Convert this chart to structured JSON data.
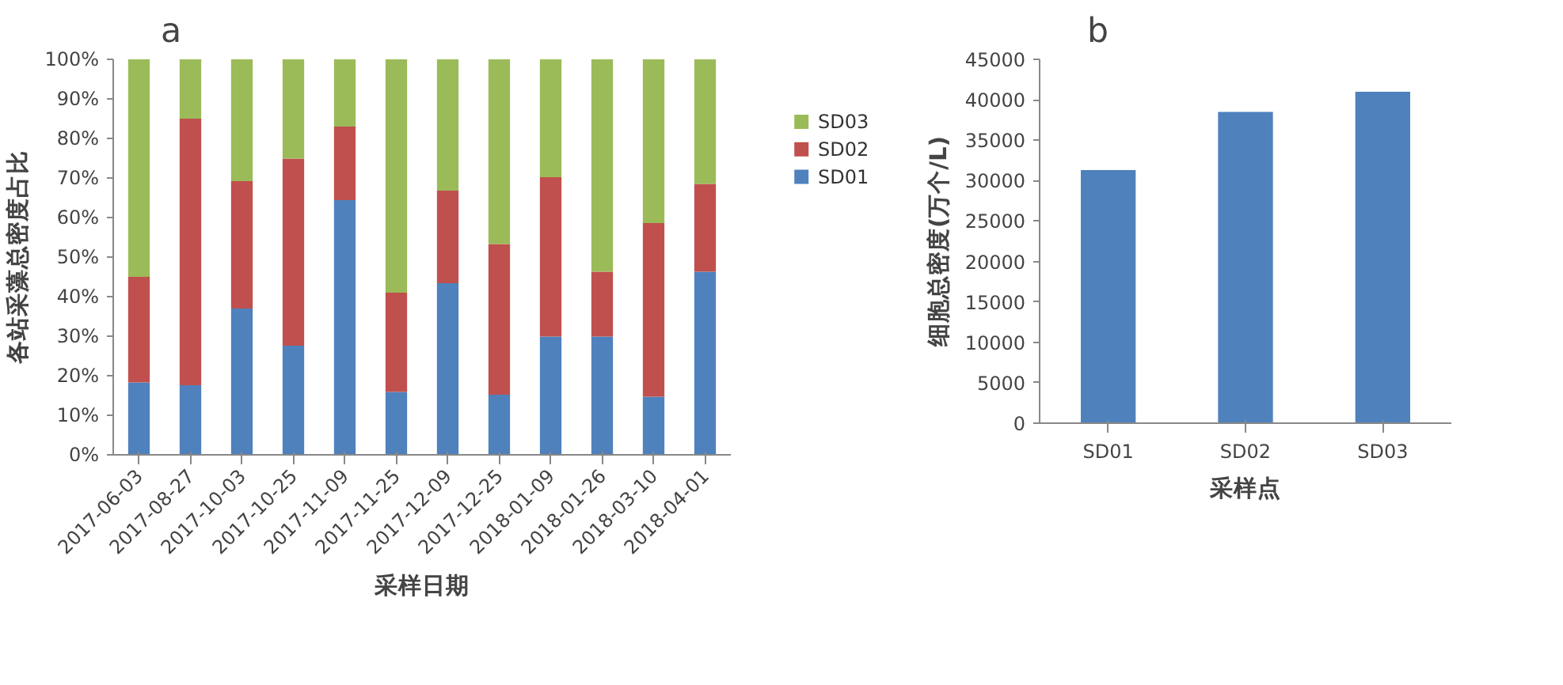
{
  "chart_data": [
    {
      "type": "bar",
      "title": "a",
      "xlabel": "采样日期",
      "ylabel": "各站采藻总密度占比",
      "stacked": true,
      "categories": [
        "2017-06-03",
        "2017-08-27",
        "2017-10-03",
        "2017-10-25",
        "2017-11-09",
        "2017-11-25",
        "2017-12-09",
        "2017-12-25",
        "2018-01-09",
        "2018-01-26",
        "2018-03-10",
        "2018-04-01"
      ],
      "series": [
        {
          "name": "SD01",
          "color": "#4f81bd",
          "values": [
            18.3,
            17.6,
            37,
            27.6,
            64.4,
            15.9,
            43.4,
            15.2,
            29.9,
            29.9,
            14.7,
            46.3
          ]
        },
        {
          "name": "SD02",
          "color": "#c0504d",
          "values": [
            26.7,
            67.4,
            32.2,
            47.3,
            18.6,
            25.1,
            23.4,
            38.1,
            40.3,
            16.4,
            43.9,
            22.2
          ]
        },
        {
          "name": "SD03",
          "color": "#9bbb59",
          "values": [
            55,
            15,
            30.8,
            25.1,
            17,
            59,
            33.2,
            46.7,
            29.8,
            53.7,
            41.4,
            31.5
          ]
        }
      ],
      "ylim": [
        0,
        100
      ],
      "yticks": [
        {
          "value": 0,
          "label": "0%"
        },
        {
          "value": 10,
          "label": "10%"
        },
        {
          "value": 20,
          "label": "20%"
        },
        {
          "value": 30,
          "label": "30%"
        },
        {
          "value": 40,
          "label": "40%"
        },
        {
          "value": 50,
          "label": "50%"
        },
        {
          "value": 60,
          "label": "60%"
        },
        {
          "value": 70,
          "label": "70%"
        },
        {
          "value": 80,
          "label": "80%"
        },
        {
          "value": 90,
          "label": "90%"
        },
        {
          "value": 100,
          "label": "100%"
        }
      ],
      "grid": false,
      "legend": "right"
    },
    {
      "type": "bar",
      "title": "b",
      "xlabel": "采样点",
      "ylabel": "细胞总密度(万个/L)",
      "categories": [
        "SD01",
        "SD02",
        "SD03"
      ],
      "values": [
        31300,
        38500,
        41000
      ],
      "color": "#4f81bd",
      "ylim": [
        0,
        45000
      ],
      "yticks": [
        0,
        5000,
        10000,
        15000,
        20000,
        25000,
        30000,
        35000,
        40000,
        45000
      ],
      "grid": false,
      "legend": false
    }
  ]
}
